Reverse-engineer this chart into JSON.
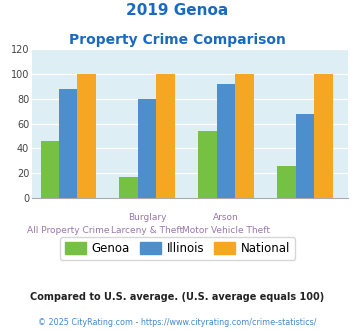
{
  "title_line1": "2019 Genoa",
  "title_line2": "Property Crime Comparison",
  "genoa_v": [
    46,
    17,
    54,
    26
  ],
  "illinois_v": [
    88,
    80,
    92,
    68
  ],
  "national_v": [
    100,
    100,
    100,
    100
  ],
  "x_positions": [
    0.5,
    1.7,
    2.9,
    4.1
  ],
  "color_genoa": "#76c043",
  "color_illinois": "#4d8fcc",
  "color_national": "#f5a623",
  "title_color": "#1a6abf",
  "label_color": "#9977aa",
  "footnote_color": "#333333",
  "url_color": "#4488cc",
  "background_plot": "#ddeef5",
  "ylim": [
    0,
    120
  ],
  "yticks": [
    0,
    20,
    40,
    60,
    80,
    100,
    120
  ],
  "top_labels": [
    "",
    "Burglary",
    "Arson",
    ""
  ],
  "bottom_labels": [
    "All Property Crime",
    "Larceny & Theft",
    "Motor Vehicle Theft",
    ""
  ],
  "footnote": "Compared to U.S. average. (U.S. average equals 100)",
  "copyright": "© 2025 CityRating.com - https://www.cityrating.com/crime-statistics/",
  "bar_width": 0.28
}
